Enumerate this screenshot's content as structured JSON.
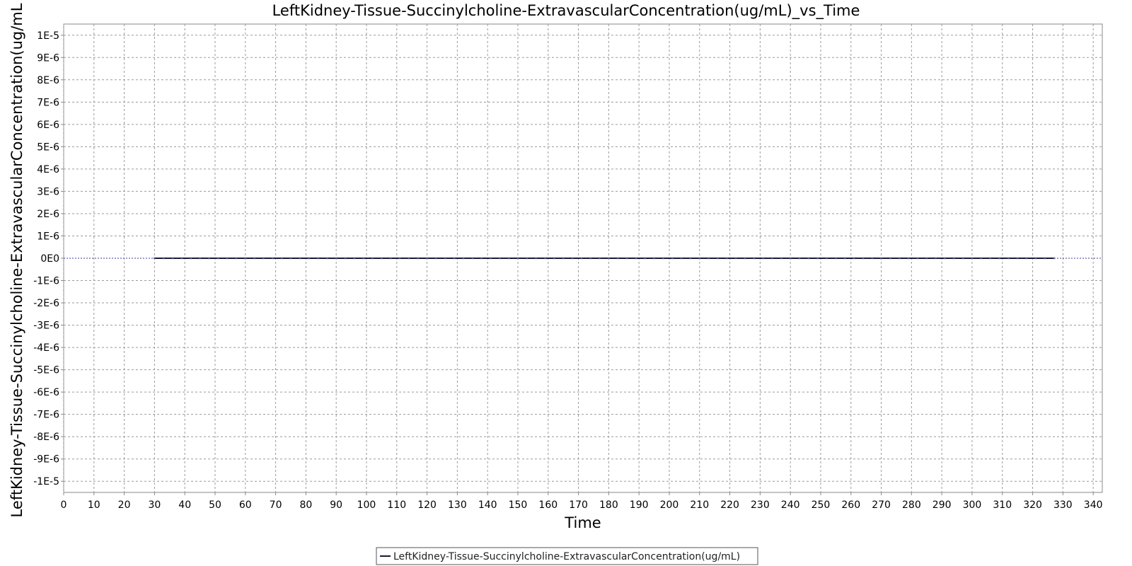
{
  "chart_data": {
    "type": "line",
    "title": "LeftKidney-Tissue-Succinylcholine-ExtravascularConcentration(ug/mL)_vs_Time",
    "xlabel": "Time",
    "ylabel": "LeftKidney-Tissue-Succinylcholine-ExtravascularConcentration(ug/mL",
    "xlim": [
      0,
      343
    ],
    "ylim": [
      -1.05e-05,
      1.05e-05
    ],
    "x_ticks": [
      0,
      10,
      20,
      30,
      40,
      50,
      60,
      70,
      80,
      90,
      100,
      110,
      120,
      130,
      140,
      150,
      160,
      170,
      180,
      190,
      200,
      210,
      220,
      230,
      240,
      250,
      260,
      270,
      280,
      290,
      300,
      310,
      320,
      330,
      340
    ],
    "y_ticks": [
      {
        "value": 1e-05,
        "label": "1E-5"
      },
      {
        "value": 9e-06,
        "label": "9E-6"
      },
      {
        "value": 8e-06,
        "label": "8E-6"
      },
      {
        "value": 7e-06,
        "label": "7E-6"
      },
      {
        "value": 6e-06,
        "label": "6E-6"
      },
      {
        "value": 5e-06,
        "label": "5E-6"
      },
      {
        "value": 4e-06,
        "label": "4E-6"
      },
      {
        "value": 3e-06,
        "label": "3E-6"
      },
      {
        "value": 2e-06,
        "label": "2E-6"
      },
      {
        "value": 1e-06,
        "label": "1E-6"
      },
      {
        "value": 0,
        "label": "0E0"
      },
      {
        "value": -1e-06,
        "label": "-1E-6"
      },
      {
        "value": -2e-06,
        "label": "-2E-6"
      },
      {
        "value": -3e-06,
        "label": "-3E-6"
      },
      {
        "value": -4e-06,
        "label": "-4E-6"
      },
      {
        "value": -5e-06,
        "label": "-5E-6"
      },
      {
        "value": -6e-06,
        "label": "-6E-6"
      },
      {
        "value": -7e-06,
        "label": "-7E-6"
      },
      {
        "value": -8e-06,
        "label": "-8E-6"
      },
      {
        "value": -9e-06,
        "label": "-9E-6"
      },
      {
        "value": -1e-05,
        "label": "-1E-5"
      }
    ],
    "grid": true,
    "legend_position": "bottom-center",
    "series": [
      {
        "name": "LeftKidney-Tissue-Succinylcholine-ExtravascularConcentration(ug/mL)",
        "color": "#1a1a3a",
        "x_start": 30,
        "x_end": 327,
        "x_step": 3,
        "y_constant": 0
      }
    ]
  }
}
